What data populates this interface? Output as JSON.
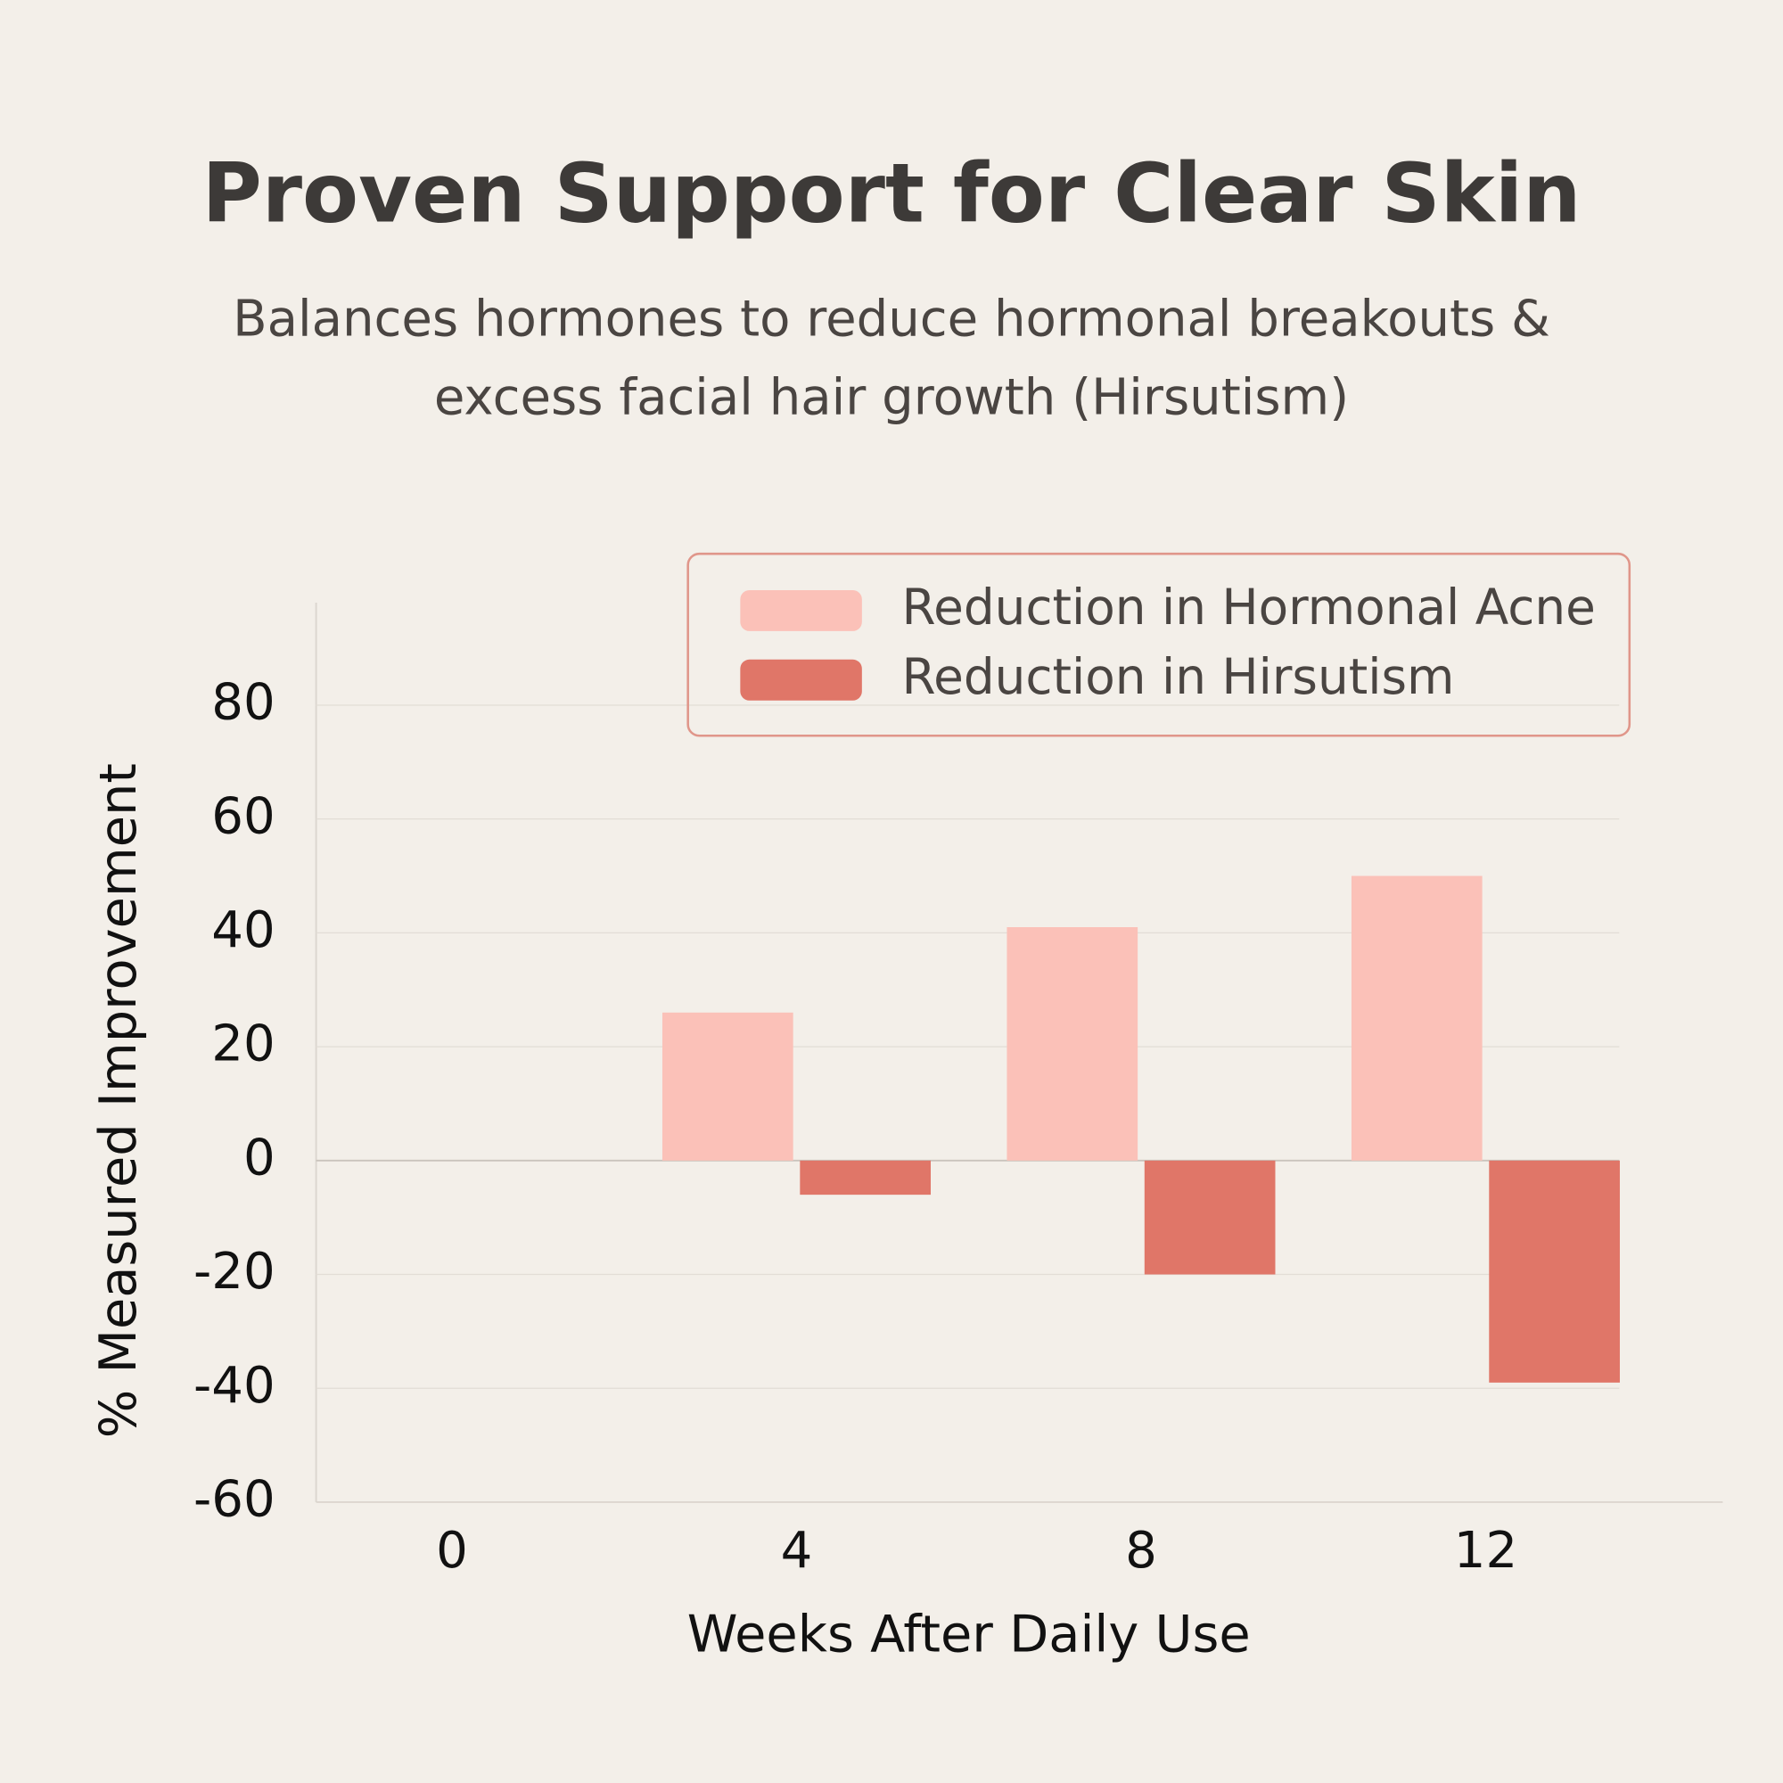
{
  "chart_data": {
    "type": "bar",
    "title": "Proven Support for Clear Skin",
    "subtitle": [
      "Balances hormones to reduce hormonal breakouts &",
      "excess facial hair growth (Hirsutism)"
    ],
    "x_label": "Weeks After Daily Use",
    "y_label": "% Measured Improvement",
    "categories": [
      "0",
      "4",
      "8",
      "12"
    ],
    "series": [
      {
        "name": "Reduction in Hormonal Acne",
        "color": "#fbc1b8",
        "values": [
          0,
          26,
          41,
          50
        ]
      },
      {
        "name": "Reduction in Hirsutism",
        "color": "#e07668",
        "values": [
          0,
          -6,
          -20,
          -39
        ]
      }
    ],
    "ylim": [
      -60,
      98
    ],
    "yticks": [
      -60,
      -40,
      -20,
      0,
      20,
      40,
      60,
      80
    ],
    "grid": true,
    "legend": "upper right"
  }
}
